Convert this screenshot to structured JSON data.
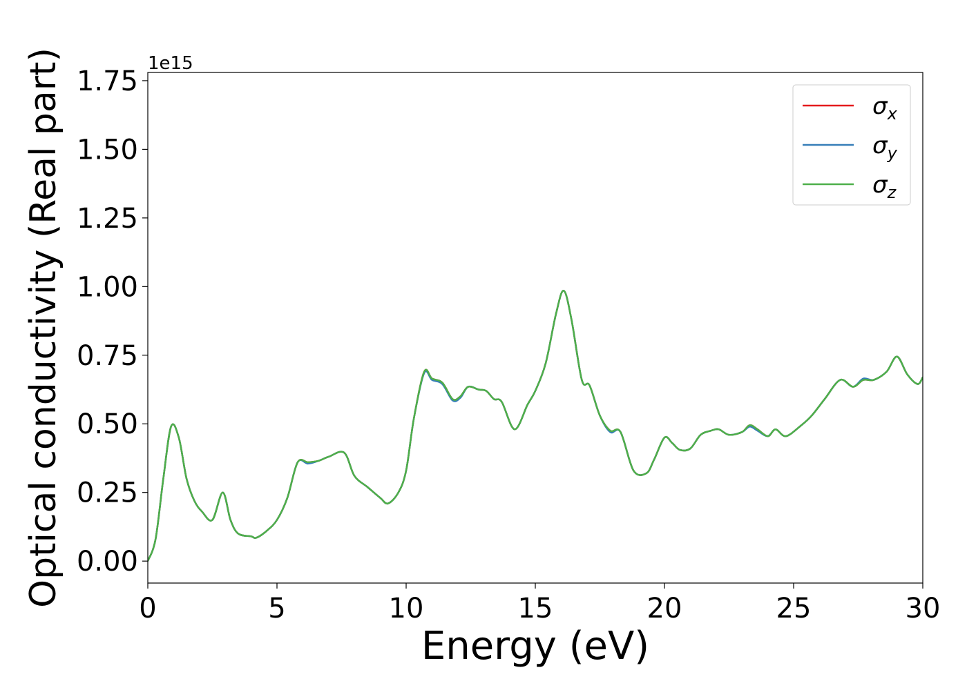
{
  "chart_data": {
    "type": "line",
    "xlabel": "Energy (eV)",
    "ylabel": "Optical conductivity (Real part)",
    "y_offset_label": "1e15",
    "xlim": [
      0,
      30
    ],
    "ylim": [
      -0.08,
      1.78
    ],
    "xticks": [
      0,
      5,
      10,
      15,
      20,
      25,
      30
    ],
    "yticks": [
      {
        "value": 0,
        "label": "0.00"
      },
      0.25,
      {
        "value": 0.5,
        "label": "0.50"
      },
      0.75,
      {
        "value": 1,
        "label": "1.00"
      },
      1.25,
      {
        "value": 1.5,
        "label": "1.50"
      },
      1.75
    ],
    "legend": "upper right",
    "x": [
      0,
      0.3,
      0.6,
      0.9,
      1.2,
      1.5,
      1.8,
      2.1,
      2.5,
      2.9,
      3.2,
      3.5,
      4.0,
      4.2,
      4.6,
      5.0,
      5.4,
      5.8,
      6.2,
      6.6,
      7.0,
      7.6,
      8.0,
      8.5,
      9.0,
      9.3,
      9.7,
      10.0,
      10.3,
      10.7,
      11.0,
      11.4,
      11.8,
      12.1,
      12.4,
      12.8,
      13.1,
      13.4,
      13.7,
      14.2,
      14.7,
      15.0,
      15.4,
      15.8,
      16.1,
      16.4,
      16.8,
      17.1,
      17.5,
      17.9,
      18.3,
      18.8,
      19.3,
      19.6,
      20.0,
      20.3,
      20.6,
      21.0,
      21.4,
      21.8,
      22.1,
      22.5,
      23.0,
      23.3,
      23.6,
      24.0,
      24.3,
      24.7,
      25.3,
      25.7,
      26.2,
      26.8,
      27.3,
      27.7,
      28.1,
      28.6,
      29.0,
      29.4,
      29.8,
      30.0
    ],
    "series": [
      {
        "name": "σx",
        "color": "#e41a1c",
        "values": [
          0.0,
          0.08,
          0.3,
          0.49,
          0.45,
          0.3,
          0.22,
          0.18,
          0.15,
          0.25,
          0.15,
          0.1,
          0.09,
          0.085,
          0.11,
          0.15,
          0.23,
          0.36,
          0.36,
          0.365,
          0.38,
          0.395,
          0.31,
          0.27,
          0.23,
          0.21,
          0.25,
          0.33,
          0.52,
          0.69,
          0.665,
          0.65,
          0.59,
          0.6,
          0.635,
          0.625,
          0.62,
          0.59,
          0.58,
          0.48,
          0.57,
          0.62,
          0.72,
          0.9,
          0.985,
          0.88,
          0.66,
          0.64,
          0.53,
          0.475,
          0.47,
          0.33,
          0.32,
          0.37,
          0.45,
          0.43,
          0.405,
          0.41,
          0.46,
          0.475,
          0.48,
          0.46,
          0.47,
          0.495,
          0.48,
          0.455,
          0.48,
          0.455,
          0.495,
          0.53,
          0.59,
          0.66,
          0.635,
          0.66,
          0.66,
          0.69,
          0.745,
          0.68,
          0.645,
          0.67
        ]
      },
      {
        "name": "σy",
        "color": "#377eb8",
        "values": [
          0.0,
          0.08,
          0.3,
          0.49,
          0.45,
          0.3,
          0.22,
          0.18,
          0.15,
          0.25,
          0.15,
          0.1,
          0.09,
          0.085,
          0.11,
          0.15,
          0.23,
          0.36,
          0.355,
          0.365,
          0.38,
          0.395,
          0.31,
          0.27,
          0.23,
          0.21,
          0.25,
          0.33,
          0.52,
          0.685,
          0.66,
          0.645,
          0.585,
          0.595,
          0.635,
          0.625,
          0.62,
          0.59,
          0.58,
          0.48,
          0.57,
          0.62,
          0.72,
          0.9,
          0.985,
          0.88,
          0.66,
          0.64,
          0.53,
          0.47,
          0.47,
          0.33,
          0.32,
          0.37,
          0.45,
          0.43,
          0.405,
          0.41,
          0.46,
          0.475,
          0.48,
          0.46,
          0.47,
          0.49,
          0.475,
          0.455,
          0.48,
          0.455,
          0.495,
          0.53,
          0.59,
          0.66,
          0.635,
          0.665,
          0.66,
          0.69,
          0.745,
          0.68,
          0.645,
          0.67
        ]
      },
      {
        "name": "σz",
        "color": "#4daf4a",
        "values": [
          0.0,
          0.08,
          0.3,
          0.49,
          0.45,
          0.3,
          0.22,
          0.18,
          0.15,
          0.25,
          0.15,
          0.1,
          0.09,
          0.085,
          0.11,
          0.15,
          0.23,
          0.36,
          0.36,
          0.365,
          0.38,
          0.395,
          0.31,
          0.27,
          0.23,
          0.21,
          0.25,
          0.33,
          0.52,
          0.69,
          0.665,
          0.65,
          0.59,
          0.6,
          0.635,
          0.625,
          0.62,
          0.59,
          0.58,
          0.48,
          0.57,
          0.62,
          0.72,
          0.9,
          0.985,
          0.88,
          0.66,
          0.64,
          0.53,
          0.475,
          0.47,
          0.33,
          0.32,
          0.37,
          0.45,
          0.43,
          0.405,
          0.41,
          0.46,
          0.475,
          0.48,
          0.46,
          0.47,
          0.495,
          0.48,
          0.455,
          0.48,
          0.455,
          0.495,
          0.53,
          0.59,
          0.66,
          0.635,
          0.66,
          0.66,
          0.69,
          0.745,
          0.68,
          0.645,
          0.67
        ]
      }
    ]
  }
}
